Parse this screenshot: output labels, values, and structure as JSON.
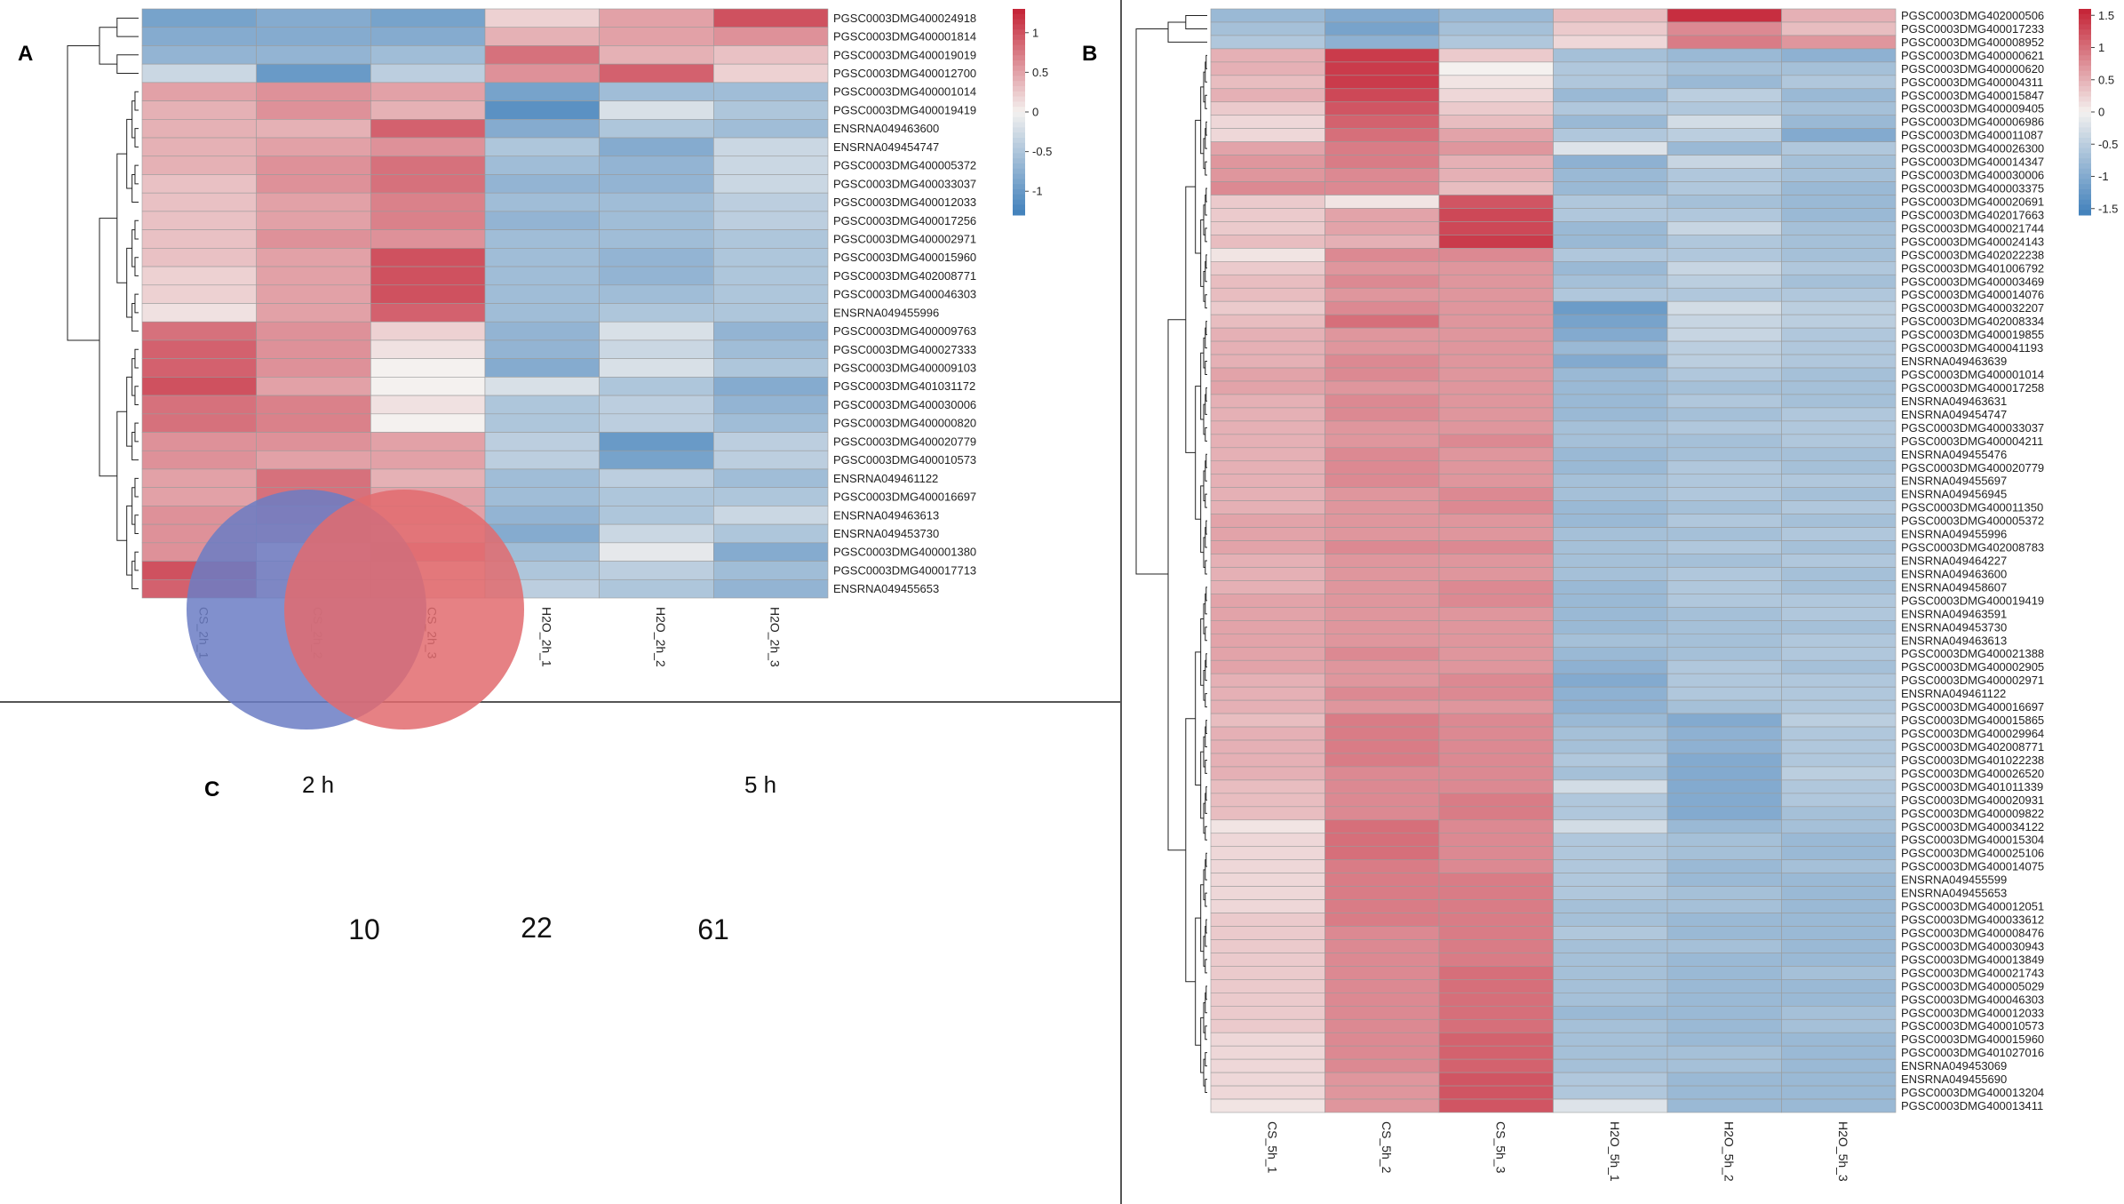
{
  "colors": {
    "low": "#3f80bb",
    "mid": "#f4f1ef",
    "high": "#c42134",
    "grid": "#9b9b9b",
    "venn_a": "#6b7dc4",
    "venn_b": "#e26b6e",
    "divider": "#555555"
  },
  "panels": {
    "A": {
      "label": "A"
    },
    "B": {
      "label": "B"
    },
    "C": {
      "label": "C"
    }
  },
  "chart_data": [
    {
      "type": "heatmap",
      "panel": "A",
      "columns": [
        "CS_2h_1",
        "CS_2h_2",
        "CS_2h_3",
        "H2O_2h_1",
        "H2O_2h_2",
        "H2O_2h_3"
      ],
      "rows": [
        "PGSC0003DMG400024918",
        "PGSC0003DMG400001814",
        "PGSC0003DMG400019019",
        "PGSC0003DMG400012700",
        "PGSC0003DMG400001014",
        "PGSC0003DMG400019419",
        "ENSRNA049463600",
        "ENSRNA049454747",
        "PGSC0003DMG400005372",
        "PGSC0003DMG400033037",
        "PGSC0003DMG400012033",
        "PGSC0003DMG400017256",
        "PGSC0003DMG400002971",
        "PGSC0003DMG400015960",
        "PGSC0003DMG402008771",
        "PGSC0003DMG400046303",
        "ENSRNA049455996",
        "PGSC0003DMG400009763",
        "PGSC0003DMG400027333",
        "PGSC0003DMG400009103",
        "PGSC0003DMG401031172",
        "PGSC0003DMG400030006",
        "PGSC0003DMG400000820",
        "PGSC0003DMG400020779",
        "PGSC0003DMG400010573",
        "ENSRNA049461122",
        "PGSC0003DMG400016697",
        "ENSRNA049463613",
        "ENSRNA049453730",
        "PGSC0003DMG400001380",
        "PGSC0003DMG400017713",
        "ENSRNA049455653"
      ],
      "values": [
        [
          -0.9,
          -0.8,
          -0.9,
          0.2,
          0.5,
          1.0
        ],
        [
          -0.8,
          -0.8,
          -0.8,
          0.4,
          0.5,
          0.6
        ],
        [
          -0.7,
          -0.7,
          -0.6,
          0.8,
          0.4,
          0.3
        ],
        [
          -0.3,
          -1.0,
          -0.4,
          0.6,
          0.9,
          0.2
        ],
        [
          0.5,
          0.6,
          0.5,
          -0.9,
          -0.6,
          -0.6
        ],
        [
          0.4,
          0.6,
          0.4,
          -1.1,
          -0.2,
          -0.5
        ],
        [
          0.4,
          0.4,
          0.9,
          -0.8,
          -0.5,
          -0.6
        ],
        [
          0.4,
          0.5,
          0.6,
          -0.5,
          -0.8,
          -0.3
        ],
        [
          0.4,
          0.6,
          0.8,
          -0.6,
          -0.7,
          -0.3
        ],
        [
          0.3,
          0.6,
          0.8,
          -0.7,
          -0.7,
          -0.3
        ],
        [
          0.3,
          0.5,
          0.7,
          -0.6,
          -0.6,
          -0.4
        ],
        [
          0.3,
          0.5,
          0.7,
          -0.7,
          -0.6,
          -0.4
        ],
        [
          0.3,
          0.6,
          0.6,
          -0.6,
          -0.6,
          -0.5
        ],
        [
          0.3,
          0.5,
          1.0,
          -0.6,
          -0.7,
          -0.5
        ],
        [
          0.2,
          0.5,
          1.0,
          -0.6,
          -0.7,
          -0.5
        ],
        [
          0.2,
          0.5,
          1.0,
          -0.6,
          -0.6,
          -0.5
        ],
        [
          0.1,
          0.5,
          0.9,
          -0.6,
          -0.5,
          -0.5
        ],
        [
          0.8,
          0.6,
          0.2,
          -0.7,
          -0.2,
          -0.7
        ],
        [
          0.9,
          0.6,
          0.1,
          -0.7,
          -0.3,
          -0.6
        ],
        [
          0.9,
          0.6,
          0.0,
          -0.8,
          -0.2,
          -0.5
        ],
        [
          1.0,
          0.5,
          0.0,
          -0.2,
          -0.5,
          -0.8
        ],
        [
          0.8,
          0.7,
          0.1,
          -0.5,
          -0.4,
          -0.7
        ],
        [
          0.8,
          0.7,
          0.0,
          -0.5,
          -0.4,
          -0.6
        ],
        [
          0.6,
          0.6,
          0.5,
          -0.4,
          -1.0,
          -0.4
        ],
        [
          0.6,
          0.5,
          0.5,
          -0.4,
          -0.9,
          -0.4
        ],
        [
          0.5,
          0.8,
          0.4,
          -0.6,
          -0.4,
          -0.6
        ],
        [
          0.5,
          0.8,
          0.5,
          -0.6,
          -0.5,
          -0.5
        ],
        [
          0.6,
          0.7,
          0.5,
          -0.7,
          -0.5,
          -0.3
        ],
        [
          0.6,
          0.6,
          0.4,
          -0.8,
          -0.3,
          -0.5
        ],
        [
          0.6,
          0.2,
          0.7,
          -0.6,
          -0.1,
          -0.8
        ],
        [
          1.0,
          0.3,
          0.3,
          -0.5,
          -0.4,
          -0.6
        ],
        [
          0.9,
          0.3,
          0.3,
          -0.4,
          -0.5,
          -0.7
        ]
      ],
      "colorbar": {
        "ticks": [
          "1",
          "0.5",
          "0",
          "-0.5",
          "-1"
        ],
        "tick_values": [
          1,
          0.5,
          0,
          -0.5,
          -1
        ],
        "range": [
          -1.3,
          1.3
        ]
      }
    },
    {
      "type": "heatmap",
      "panel": "B",
      "columns": [
        "CS_5h_1",
        "CS_5h_2",
        "CS_5h_3",
        "H2O_5h_1",
        "H2O_5h_2",
        "H2O_5h_3"
      ],
      "rows": [
        "PGSC0003DMG402000506",
        "PGSC0003DMG400017233",
        "PGSC0003DMG400008952",
        "PGSC0003DMG400000621",
        "PGSC0003DMG400000620",
        "PGSC0003DMG400004311",
        "PGSC0003DMG400015847",
        "PGSC0003DMG400009405",
        "PGSC0003DMG400006986",
        "PGSC0003DMG400011087",
        "PGSC0003DMG400026300",
        "PGSC0003DMG400014347",
        "PGSC0003DMG400030006",
        "PGSC0003DMG400003375",
        "PGSC0003DMG400020691",
        "PGSC0003DMG402017663",
        "PGSC0003DMG400021744",
        "PGSC0003DMG400024143",
        "PGSC0003DMG402022238",
        "PGSC0003DMG401006792",
        "PGSC0003DMG400003469",
        "PGSC0003DMG400014076",
        "PGSC0003DMG400032207",
        "PGSC0003DMG402008334",
        "PGSC0003DMG400019855",
        "PGSC0003DMG400041193",
        "ENSRNA049463639",
        "PGSC0003DMG400001014",
        "PGSC0003DMG400017258",
        "ENSRNA049463631",
        "ENSRNA049454747",
        "PGSC0003DMG400033037",
        "PGSC0003DMG400004211",
        "ENSRNA049455476",
        "PGSC0003DMG400020779",
        "ENSRNA049455697",
        "ENSRNA049456945",
        "PGSC0003DMG400011350",
        "PGSC0003DMG400005372",
        "ENSRNA049455996",
        "PGSC0003DMG402008783",
        "ENSRNA049464227",
        "ENSRNA049463600",
        "ENSRNA049458607",
        "PGSC0003DMG400019419",
        "ENSRNA049463591",
        "ENSRNA049453730",
        "ENSRNA049463613",
        "PGSC0003DMG400021388",
        "PGSC0003DMG400002905",
        "PGSC0003DMG400002971",
        "ENSRNA049461122",
        "PGSC0003DMG400016697",
        "PGSC0003DMG400015865",
        "PGSC0003DMG400029964",
        "PGSC0003DMG402008771",
        "PGSC0003DMG401022238",
        "PGSC0003DMG400026520",
        "PGSC0003DMG401011339",
        "PGSC0003DMG400020931",
        "PGSC0003DMG400009822",
        "PGSC0003DMG400034122",
        "PGSC0003DMG400015304",
        "PGSC0003DMG400025106",
        "PGSC0003DMG400014075",
        "ENSRNA049455599",
        "ENSRNA049455653",
        "PGSC0003DMG400012051",
        "PGSC0003DMG400033612",
        "PGSC0003DMG400008476",
        "PGSC0003DMG400030943",
        "PGSC0003DMG400013849",
        "PGSC0003DMG400021743",
        "PGSC0003DMG400005029",
        "PGSC0003DMG400046303",
        "PGSC0003DMG400012033",
        "PGSC0003DMG400010573",
        "PGSC0003DMG400015960",
        "PGSC0003DMG401027016",
        "ENSRNA049453069",
        "ENSRNA049455690",
        "PGSC0003DMG400013204",
        "PGSC0003DMG400013411"
      ],
      "values": [
        [
          -0.8,
          -1.0,
          -0.8,
          0.4,
          1.5,
          0.5
        ],
        [
          -0.7,
          -1.1,
          -0.7,
          0.3,
          0.8,
          0.4
        ],
        [
          -0.6,
          -0.9,
          -0.6,
          0.2,
          0.9,
          0.7
        ],
        [
          0.5,
          1.4,
          0.3,
          -0.7,
          -0.8,
          -0.9
        ],
        [
          0.5,
          1.4,
          0.0,
          -0.6,
          -0.7,
          -0.7
        ],
        [
          0.4,
          1.4,
          0.1,
          -0.6,
          -0.8,
          -0.6
        ],
        [
          0.5,
          1.3,
          0.2,
          -0.8,
          -0.5,
          -0.8
        ],
        [
          0.3,
          1.2,
          0.3,
          -0.6,
          -0.6,
          -0.7
        ],
        [
          0.2,
          1.1,
          0.4,
          -0.8,
          -0.3,
          -0.8
        ],
        [
          0.2,
          1.0,
          0.6,
          -0.6,
          -0.5,
          -1.0
        ],
        [
          0.6,
          0.9,
          0.7,
          -0.2,
          -0.8,
          -0.6
        ],
        [
          0.7,
          0.9,
          0.5,
          -0.9,
          -0.4,
          -0.7
        ],
        [
          0.7,
          0.8,
          0.5,
          -0.8,
          -0.6,
          -0.7
        ],
        [
          0.8,
          0.8,
          0.4,
          -0.8,
          -0.6,
          -0.8
        ],
        [
          0.3,
          0.1,
          1.2,
          -0.6,
          -0.7,
          -0.8
        ],
        [
          0.3,
          0.6,
          1.3,
          -0.6,
          -0.6,
          -0.8
        ],
        [
          0.3,
          0.6,
          1.3,
          -0.8,
          -0.4,
          -0.7
        ],
        [
          0.4,
          0.5,
          1.4,
          -0.8,
          -0.6,
          -0.7
        ],
        [
          0.1,
          0.8,
          0.8,
          -0.6,
          -0.6,
          -0.7
        ],
        [
          0.3,
          0.7,
          0.7,
          -0.8,
          -0.4,
          -0.6
        ],
        [
          0.4,
          0.8,
          0.7,
          -0.7,
          -0.5,
          -0.7
        ],
        [
          0.4,
          0.7,
          0.7,
          -0.6,
          -0.6,
          -0.6
        ],
        [
          0.3,
          0.8,
          0.7,
          -1.2,
          -0.3,
          -0.5
        ],
        [
          0.4,
          1.0,
          0.7,
          -1.1,
          -0.4,
          -0.5
        ],
        [
          0.5,
          0.7,
          0.7,
          -1.0,
          -0.4,
          -0.6
        ],
        [
          0.5,
          0.7,
          0.7,
          -0.8,
          -0.5,
          -0.6
        ],
        [
          0.5,
          0.8,
          0.7,
          -1.0,
          -0.5,
          -0.6
        ],
        [
          0.6,
          0.8,
          0.7,
          -0.8,
          -0.6,
          -0.7
        ],
        [
          0.6,
          0.7,
          0.7,
          -0.8,
          -0.7,
          -0.7
        ],
        [
          0.5,
          0.8,
          0.7,
          -0.8,
          -0.6,
          -0.7
        ],
        [
          0.5,
          0.8,
          0.7,
          -0.8,
          -0.7,
          -0.6
        ],
        [
          0.5,
          0.7,
          0.7,
          -0.7,
          -0.6,
          -0.6
        ],
        [
          0.5,
          0.7,
          0.8,
          -0.7,
          -0.7,
          -0.6
        ],
        [
          0.5,
          0.8,
          0.7,
          -0.8,
          -0.7,
          -0.7
        ],
        [
          0.5,
          0.8,
          0.7,
          -0.8,
          -0.6,
          -0.7
        ],
        [
          0.5,
          0.8,
          0.7,
          -0.7,
          -0.6,
          -0.6
        ],
        [
          0.5,
          0.7,
          0.8,
          -0.7,
          -0.6,
          -0.7
        ],
        [
          0.5,
          0.7,
          0.8,
          -0.8,
          -0.7,
          -0.6
        ],
        [
          0.6,
          0.7,
          0.7,
          -0.8,
          -0.6,
          -0.7
        ],
        [
          0.6,
          0.7,
          0.7,
          -0.7,
          -0.7,
          -0.6
        ],
        [
          0.6,
          0.8,
          0.8,
          -0.7,
          -0.6,
          -0.7
        ],
        [
          0.5,
          0.7,
          0.7,
          -0.7,
          -0.7,
          -0.6
        ],
        [
          0.5,
          0.7,
          0.7,
          -0.7,
          -0.6,
          -0.7
        ],
        [
          0.5,
          0.7,
          0.8,
          -0.8,
          -0.6,
          -0.7
        ],
        [
          0.6,
          0.7,
          0.8,
          -0.8,
          -0.6,
          -0.6
        ],
        [
          0.6,
          0.7,
          0.7,
          -0.8,
          -0.7,
          -0.6
        ],
        [
          0.6,
          0.7,
          0.7,
          -0.8,
          -0.7,
          -0.7
        ],
        [
          0.6,
          0.7,
          0.7,
          -0.7,
          -0.7,
          -0.6
        ],
        [
          0.6,
          0.8,
          0.7,
          -0.8,
          -0.7,
          -0.6
        ],
        [
          0.6,
          0.7,
          0.7,
          -0.9,
          -0.6,
          -0.7
        ],
        [
          0.5,
          0.7,
          0.8,
          -1.0,
          -0.6,
          -0.6
        ],
        [
          0.5,
          0.8,
          0.8,
          -0.9,
          -0.6,
          -0.6
        ],
        [
          0.5,
          0.7,
          0.7,
          -0.9,
          -0.7,
          -0.6
        ],
        [
          0.4,
          0.9,
          0.8,
          -0.8,
          -1.0,
          -0.5
        ],
        [
          0.5,
          0.9,
          0.8,
          -0.7,
          -0.9,
          -0.6
        ],
        [
          0.5,
          0.9,
          0.8,
          -0.7,
          -0.9,
          -0.6
        ],
        [
          0.5,
          0.9,
          0.8,
          -0.6,
          -1.0,
          -0.6
        ],
        [
          0.5,
          0.8,
          0.8,
          -0.7,
          -1.0,
          -0.5
        ],
        [
          0.4,
          0.8,
          0.8,
          -0.3,
          -1.0,
          -0.6
        ],
        [
          0.4,
          0.8,
          0.9,
          -0.6,
          -1.0,
          -0.6
        ],
        [
          0.4,
          0.8,
          0.9,
          -0.6,
          -1.0,
          -0.7
        ],
        [
          0.1,
          1.0,
          0.8,
          -0.3,
          -0.8,
          -0.7
        ],
        [
          0.2,
          1.0,
          0.8,
          -0.6,
          -0.7,
          -0.8
        ],
        [
          0.2,
          1.0,
          0.8,
          -0.6,
          -0.7,
          -0.8
        ],
        [
          0.2,
          0.9,
          0.8,
          -0.6,
          -0.8,
          -0.7
        ],
        [
          0.2,
          0.9,
          0.9,
          -0.6,
          -0.8,
          -0.8
        ],
        [
          0.2,
          0.9,
          0.9,
          -0.6,
          -0.7,
          -0.8
        ],
        [
          0.2,
          0.9,
          0.9,
          -0.7,
          -0.7,
          -0.8
        ],
        [
          0.3,
          0.9,
          0.9,
          -0.7,
          -0.8,
          -0.8
        ],
        [
          0.3,
          0.8,
          0.9,
          -0.6,
          -0.8,
          -0.8
        ],
        [
          0.3,
          0.8,
          0.9,
          -0.7,
          -0.7,
          -0.8
        ],
        [
          0.3,
          0.8,
          0.9,
          -0.7,
          -0.8,
          -0.8
        ],
        [
          0.3,
          0.8,
          1.0,
          -0.7,
          -0.8,
          -0.7
        ],
        [
          0.3,
          0.8,
          1.0,
          -0.7,
          -0.8,
          -0.8
        ],
        [
          0.3,
          0.8,
          1.0,
          -0.7,
          -0.8,
          -0.8
        ],
        [
          0.3,
          0.8,
          1.0,
          -0.8,
          -0.8,
          -0.7
        ],
        [
          0.3,
          0.8,
          1.0,
          -0.7,
          -0.8,
          -0.7
        ],
        [
          0.2,
          0.8,
          1.1,
          -0.7,
          -0.8,
          -0.8
        ],
        [
          0.2,
          0.8,
          1.1,
          -0.7,
          -0.7,
          -0.8
        ],
        [
          0.2,
          0.8,
          1.1,
          -0.7,
          -0.7,
          -0.8
        ],
        [
          0.2,
          0.7,
          1.2,
          -0.6,
          -0.8,
          -0.8
        ],
        [
          0.2,
          0.7,
          1.2,
          -0.6,
          -0.8,
          -0.8
        ],
        [
          0.1,
          0.7,
          1.2,
          -0.2,
          -0.8,
          -0.8
        ]
      ],
      "colorbar": {
        "ticks": [
          "1.5",
          "1",
          "0.5",
          "0",
          "-0.5",
          "-1",
          "-1.5"
        ],
        "tick_values": [
          1.5,
          1,
          0.5,
          0,
          -0.5,
          -1,
          -1.5
        ],
        "range": [
          -1.6,
          1.6
        ]
      }
    },
    {
      "type": "venn",
      "panel": "C",
      "sets": [
        {
          "name": "2 h",
          "only": 10
        },
        {
          "name": "5 h",
          "only": 61
        }
      ],
      "intersection": 22
    }
  ]
}
